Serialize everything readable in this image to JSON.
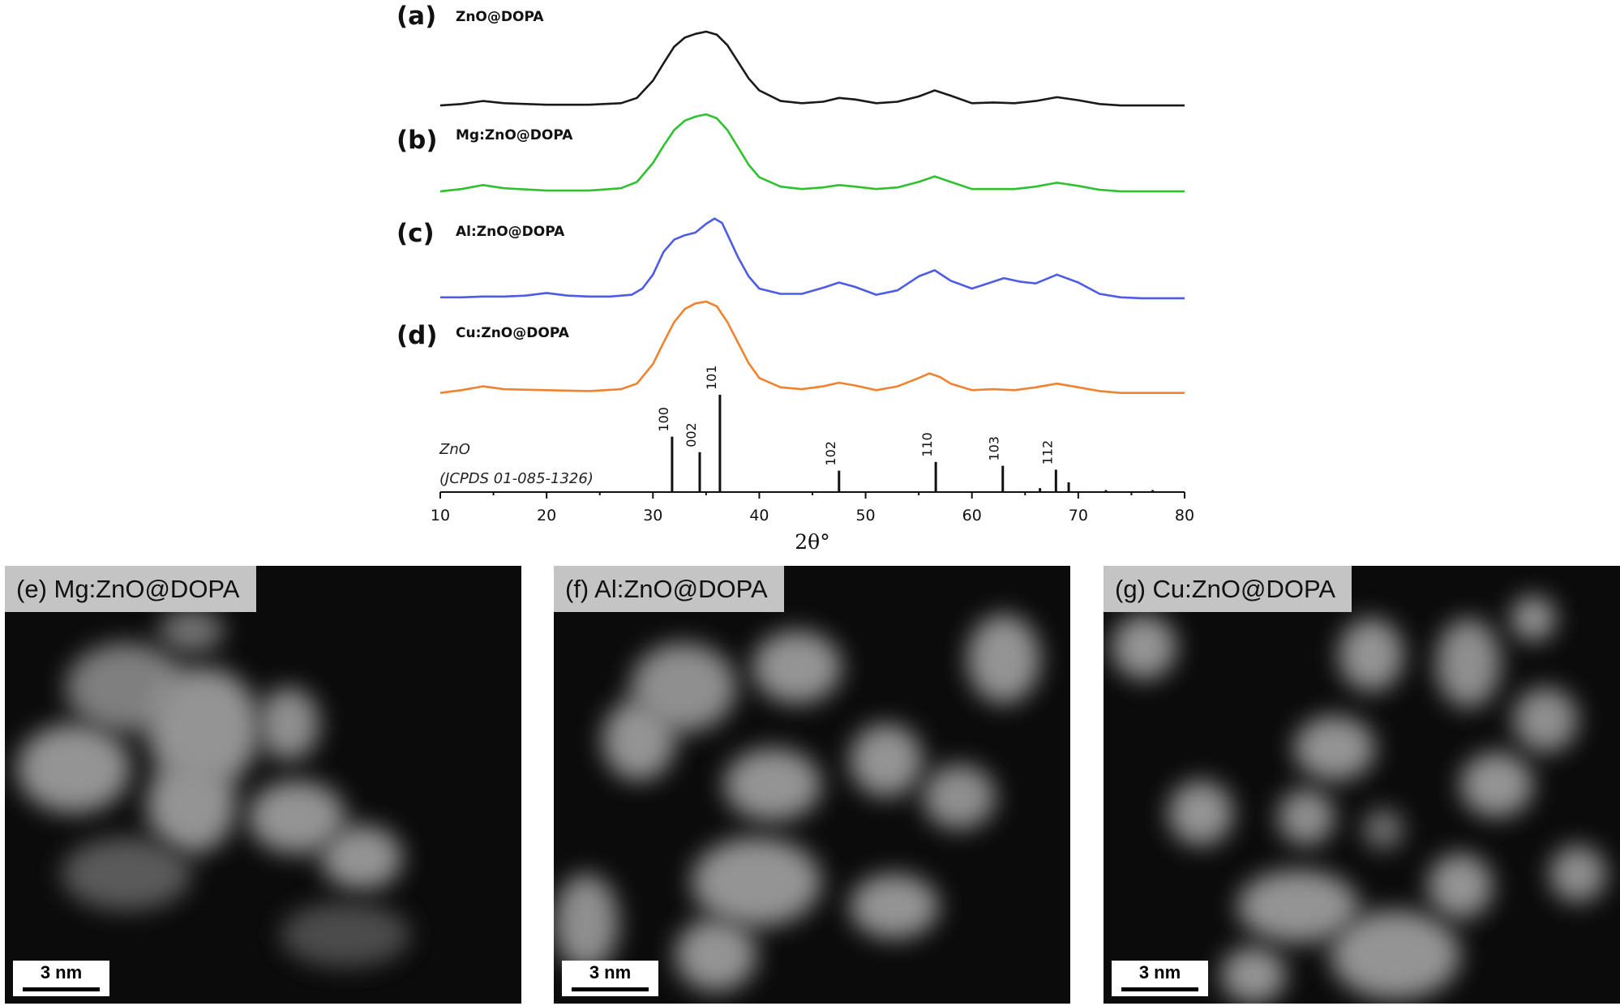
{
  "chart_data": {
    "type": "line",
    "xlabel": "2θ°",
    "xlim": [
      10,
      80
    ],
    "xticks": [
      10,
      20,
      30,
      40,
      50,
      60,
      70,
      80
    ],
    "grid": false,
    "series": [
      {
        "panel": "(a)",
        "name": "ZnO@DOPA",
        "color": "#1a1a1a",
        "x": [
          10,
          12,
          14,
          16,
          20,
          24,
          27,
          28.5,
          30,
          31,
          32,
          33,
          34,
          35,
          36,
          37,
          38,
          39,
          40,
          42,
          44,
          46,
          47.5,
          49,
          51,
          53,
          55,
          56.5,
          58,
          60,
          62,
          64,
          66,
          68,
          70,
          72,
          74,
          76,
          80
        ],
        "y": [
          0.02,
          0.04,
          0.08,
          0.05,
          0.03,
          0.03,
          0.05,
          0.12,
          0.35,
          0.58,
          0.8,
          0.92,
          0.97,
          1.0,
          0.96,
          0.82,
          0.6,
          0.38,
          0.22,
          0.08,
          0.05,
          0.07,
          0.12,
          0.1,
          0.05,
          0.07,
          0.14,
          0.22,
          0.15,
          0.05,
          0.06,
          0.05,
          0.08,
          0.13,
          0.09,
          0.04,
          0.02,
          0.02,
          0.02
        ]
      },
      {
        "panel": "(b)",
        "name": "Mg:ZnO@DOPA",
        "color": "#2ec22e",
        "x": [
          10,
          12,
          14,
          16,
          20,
          24,
          27,
          28.5,
          30,
          31,
          32,
          33,
          34,
          35,
          36,
          37,
          38,
          39,
          40,
          42,
          44,
          46,
          47.5,
          49,
          51,
          53,
          55,
          56.5,
          58,
          60,
          62,
          64,
          66,
          68,
          70,
          72,
          74,
          76,
          80
        ],
        "y": [
          0.02,
          0.05,
          0.1,
          0.06,
          0.03,
          0.03,
          0.06,
          0.14,
          0.38,
          0.6,
          0.8,
          0.92,
          0.97,
          1.0,
          0.95,
          0.8,
          0.58,
          0.36,
          0.2,
          0.08,
          0.05,
          0.07,
          0.1,
          0.08,
          0.05,
          0.07,
          0.14,
          0.21,
          0.14,
          0.05,
          0.05,
          0.05,
          0.08,
          0.13,
          0.09,
          0.04,
          0.02,
          0.02,
          0.02
        ]
      },
      {
        "panel": "(c)",
        "name": "Al:ZnO@DOPA",
        "color": "#4d5ce6",
        "x": [
          10,
          12,
          14,
          16,
          18,
          20,
          22,
          24,
          26,
          28,
          29,
          30,
          31,
          32,
          33,
          34,
          35,
          35.8,
          36.5,
          37,
          38,
          39,
          40,
          42,
          44,
          46,
          47.5,
          49,
          51,
          53,
          55,
          56.5,
          58,
          60,
          61.5,
          63,
          64.5,
          66,
          68,
          70,
          72,
          74,
          76,
          80
        ],
        "y": [
          0.02,
          0.02,
          0.03,
          0.03,
          0.04,
          0.07,
          0.04,
          0.03,
          0.03,
          0.05,
          0.12,
          0.28,
          0.54,
          0.68,
          0.73,
          0.76,
          0.86,
          0.92,
          0.87,
          0.74,
          0.48,
          0.26,
          0.12,
          0.06,
          0.06,
          0.13,
          0.19,
          0.14,
          0.05,
          0.1,
          0.26,
          0.33,
          0.21,
          0.12,
          0.18,
          0.24,
          0.2,
          0.18,
          0.28,
          0.19,
          0.06,
          0.02,
          0.01,
          0.01
        ]
      },
      {
        "panel": "(d)",
        "name": "Cu:ZnO@DOPA",
        "color": "#f08230",
        "x": [
          10,
          12,
          14,
          16,
          20,
          24,
          27,
          28.5,
          30,
          31,
          32,
          33,
          34,
          35,
          36,
          37,
          38,
          39,
          40,
          42,
          44,
          46,
          47.5,
          49,
          51,
          53,
          55,
          56,
          57,
          58,
          60,
          62,
          64,
          66,
          68,
          70,
          72,
          74,
          76,
          80
        ],
        "y": [
          0.02,
          0.05,
          0.09,
          0.06,
          0.05,
          0.04,
          0.06,
          0.12,
          0.33,
          0.56,
          0.78,
          0.92,
          0.98,
          1.0,
          0.95,
          0.78,
          0.56,
          0.34,
          0.18,
          0.08,
          0.06,
          0.09,
          0.13,
          0.1,
          0.05,
          0.09,
          0.18,
          0.23,
          0.19,
          0.12,
          0.05,
          0.06,
          0.05,
          0.08,
          0.12,
          0.08,
          0.04,
          0.02,
          0.02,
          0.02
        ]
      }
    ],
    "reference": {
      "name": "ZnO",
      "source": "(JCPDS 01-085-1326)",
      "peaks": [
        {
          "x": 31.8,
          "intensity": 0.57,
          "hkl": "100"
        },
        {
          "x": 34.4,
          "intensity": 0.41,
          "hkl": "002"
        },
        {
          "x": 36.3,
          "intensity": 1.0,
          "hkl": "101"
        },
        {
          "x": 47.5,
          "intensity": 0.22,
          "hkl": "102"
        },
        {
          "x": 56.6,
          "intensity": 0.31,
          "hkl": "110"
        },
        {
          "x": 62.9,
          "intensity": 0.27,
          "hkl": "103"
        },
        {
          "x": 66.4,
          "intensity": 0.04,
          "hkl": ""
        },
        {
          "x": 67.9,
          "intensity": 0.23,
          "hkl": "112"
        },
        {
          "x": 69.1,
          "intensity": 0.1,
          "hkl": ""
        },
        {
          "x": 72.6,
          "intensity": 0.02,
          "hkl": ""
        },
        {
          "x": 77.0,
          "intensity": 0.02,
          "hkl": ""
        }
      ]
    }
  },
  "tem_panels": [
    {
      "label": "(e) Mg:ZnO@DOPA",
      "scale": "3 nm"
    },
    {
      "label": "(f) Al:ZnO@DOPA",
      "scale": "3 nm"
    },
    {
      "label": "(g) Cu:ZnO@DOPA",
      "scale": "3 nm"
    }
  ]
}
